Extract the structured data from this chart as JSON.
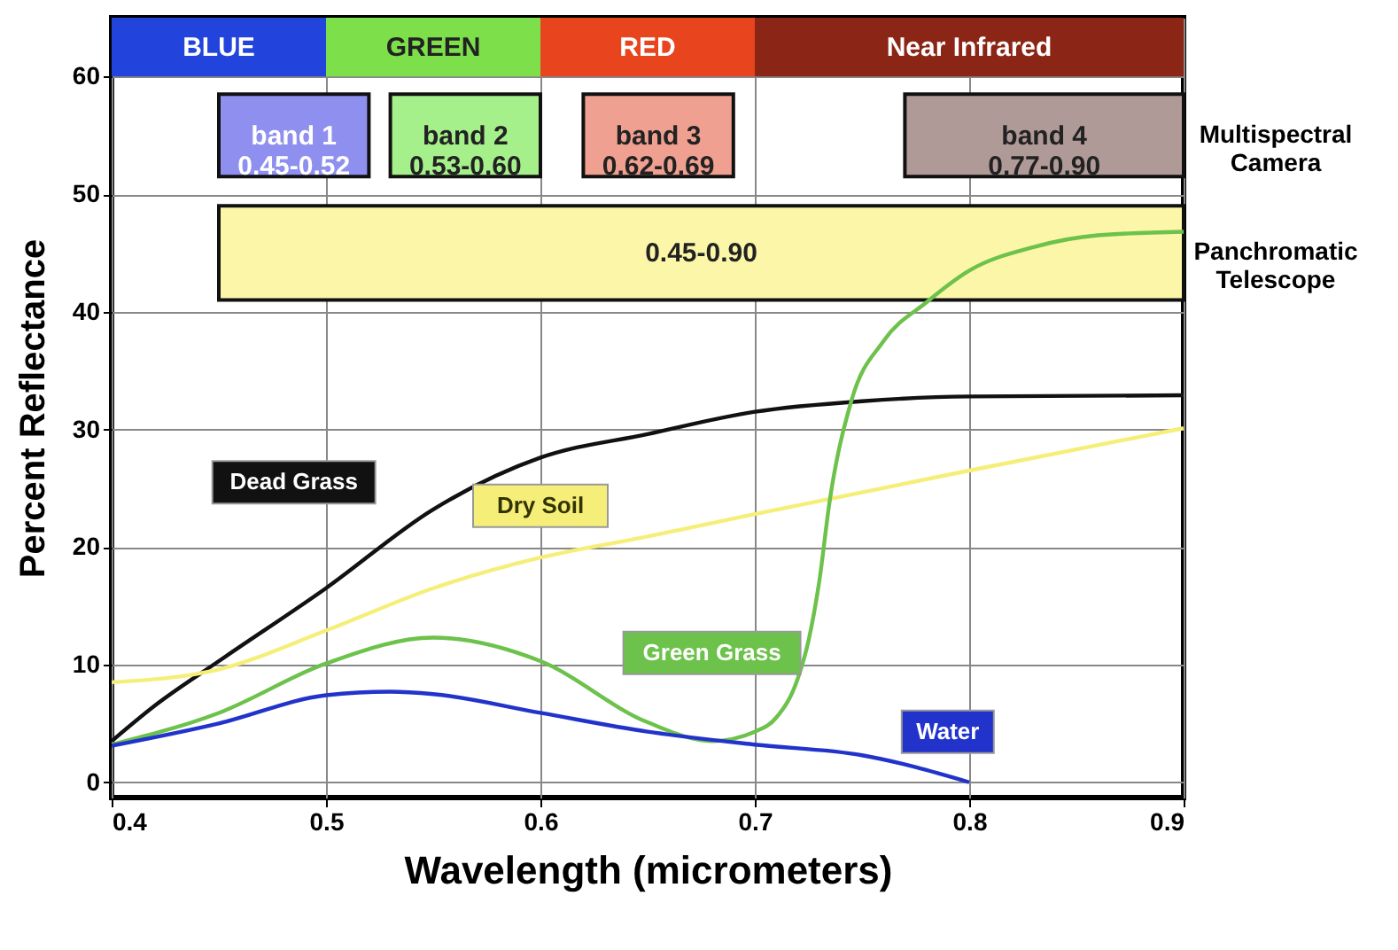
{
  "chart_data": {
    "type": "line",
    "xlabel": "Wavelength (micrometers)",
    "ylabel": "Percent Reflectance",
    "xlim": [
      0.4,
      0.9
    ],
    "ylim": [
      -1.3,
      65
    ],
    "xticks": [
      0.4,
      0.5,
      0.6,
      0.7,
      0.8,
      0.9
    ],
    "yticks": [
      0,
      10,
      20,
      30,
      40,
      50,
      60
    ],
    "grid": true,
    "legend": false,
    "marker": "none",
    "line_style": "solid",
    "series": [
      {
        "name": "Dead Grass",
        "color": "#111111",
        "x": [
          0.4,
          0.42,
          0.45,
          0.5,
          0.55,
          0.6,
          0.65,
          0.7,
          0.75,
          0.8,
          0.9
        ],
        "values": [
          3.5,
          6.5,
          10.3,
          16.5,
          23.2,
          27.6,
          29.6,
          31.5,
          32.4,
          32.8,
          32.9
        ]
      },
      {
        "name": "Dry Soil",
        "color": "#f5ef7a",
        "x": [
          0.4,
          0.45,
          0.5,
          0.55,
          0.6,
          0.65,
          0.7,
          0.8,
          0.9
        ],
        "values": [
          8.5,
          9.6,
          12.9,
          16.5,
          19.1,
          20.9,
          22.8,
          26.5,
          30.1
        ]
      },
      {
        "name": "Green Grass",
        "color": "#6cc24a",
        "x": [
          0.4,
          0.45,
          0.5,
          0.55,
          0.6,
          0.65,
          0.68,
          0.7,
          0.71,
          0.72,
          0.725,
          0.73,
          0.735,
          0.745,
          0.76,
          0.78,
          0.8,
          0.83,
          0.86,
          0.9
        ],
        "values": [
          3.2,
          5.9,
          10.1,
          12.3,
          10.3,
          5.1,
          3.5,
          4.3,
          5.5,
          8.8,
          12,
          17,
          24,
          32.4,
          37.5,
          40.8,
          43.5,
          45.5,
          46.5,
          46.8
        ]
      },
      {
        "name": "Water",
        "color": "#2233cc",
        "x": [
          0.4,
          0.45,
          0.5,
          0.53,
          0.55,
          0.6,
          0.65,
          0.7,
          0.75,
          0.8
        ],
        "values": [
          3.1,
          5,
          7.4,
          7.7,
          7.5,
          5.9,
          4.3,
          3.2,
          2.3,
          0
        ]
      }
    ],
    "bands": [
      {
        "axis": "x",
        "from": 0.4,
        "to": 0.5,
        "label": "BLUE",
        "color": "#2244dd"
      },
      {
        "axis": "x",
        "from": 0.5,
        "to": 0.6,
        "label": "GREEN",
        "color": "#7de04a"
      },
      {
        "axis": "x",
        "from": 0.6,
        "to": 0.7,
        "label": "RED",
        "color": "#e8441e"
      },
      {
        "axis": "x",
        "from": 0.7,
        "to": 0.9,
        "label": "Near Infrared",
        "color": "#8b2515"
      },
      {
        "axis": "x",
        "from": 0.45,
        "to": 0.52,
        "label": "band 1\n0.45-0.52",
        "color": "#8f8ff0"
      },
      {
        "axis": "x",
        "from": 0.53,
        "to": 0.6,
        "label": "band 2\n0.53-0.60",
        "color": "#a6f08c"
      },
      {
        "axis": "x",
        "from": 0.62,
        "to": 0.69,
        "label": "band 3\n0.62-0.69",
        "color": "#f0a090"
      },
      {
        "axis": "x",
        "from": 0.77,
        "to": 0.9,
        "label": "band 4\n0.77-0.90",
        "color": "#b09a98"
      },
      {
        "axis": "x",
        "from": 0.45,
        "to": 0.9,
        "label": "0.45-0.90",
        "color": "#fbf6a8"
      }
    ],
    "annotations": [
      "Multispectral\nCamera",
      "Panchromatic\nTelescope"
    ]
  }
}
